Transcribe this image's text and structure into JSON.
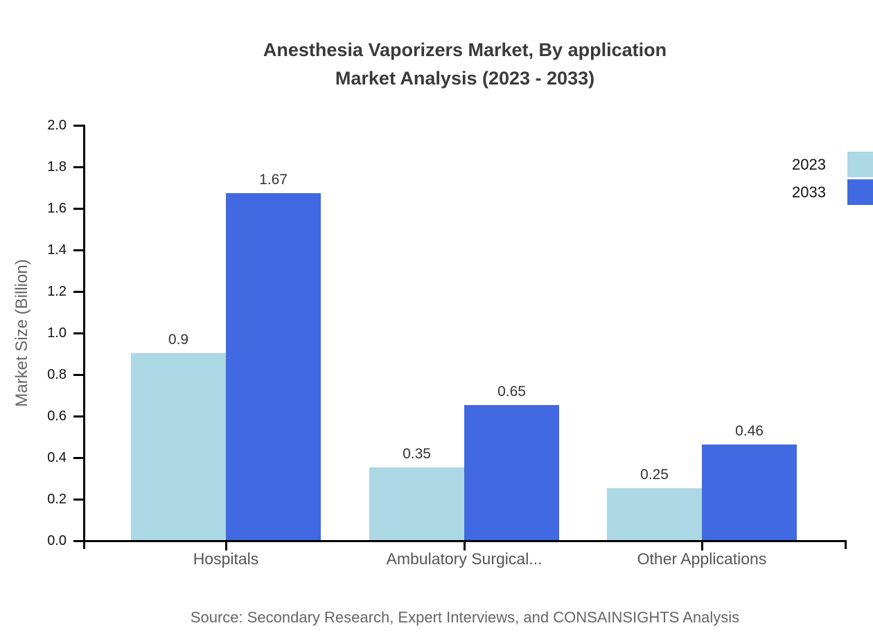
{
  "colors": {
    "background": "#FFFFFF",
    "axis": "#000000",
    "title_text": "#3A3A3A",
    "tick_label": "#111111",
    "category_label": "#555555",
    "value_label": "#333333",
    "axis_title": "#666666",
    "source_text": "#666666",
    "legend_text": "#111111",
    "series_2023": "#ADD8E6",
    "series_2033": "#4169E1"
  },
  "chart_data": {
    "type": "bar",
    "title": "Anesthesia Vaporizers Market, By application Market Analysis (2023 - 2033)",
    "title_lines": [
      "Anesthesia Vaporizers Market, By application",
      "Market Analysis (2023 - 2033)"
    ],
    "categories": [
      "Hospitals",
      "Ambulatory Surgical...",
      "Other Applications"
    ],
    "series": [
      {
        "name": "2023",
        "color": "#ADD8E6",
        "values": [
          0.9,
          0.35,
          0.25
        ],
        "labels": [
          "0.9",
          "0.35",
          "0.25"
        ]
      },
      {
        "name": "2033",
        "color": "#4169E1",
        "values": [
          1.67,
          0.65,
          0.46
        ],
        "labels": [
          "1.67",
          "0.65",
          "0.46"
        ]
      }
    ],
    "xlabel": "",
    "ylabel": "Market Size (Billion)",
    "ylim": [
      0.0,
      2.0
    ],
    "ytick_step": 0.2,
    "yticks": [
      "0.0",
      "0.2",
      "0.4",
      "0.6",
      "0.8",
      "1.0",
      "1.2",
      "1.4",
      "1.6",
      "1.8",
      "2.0"
    ],
    "grid": false,
    "legend_position": "top-right",
    "source": "Source: Secondary Research, Expert Interviews, and CONSAINSIGHTS Analysis"
  }
}
